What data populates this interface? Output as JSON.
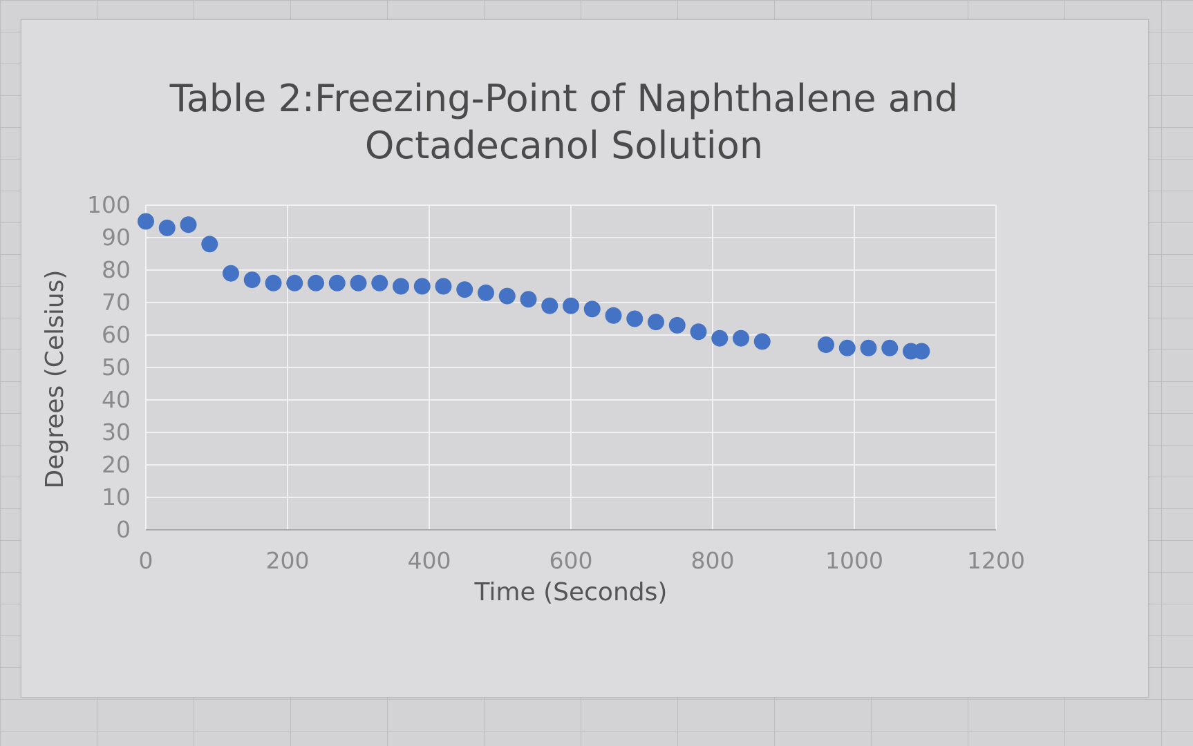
{
  "chart_data": {
    "type": "scatter",
    "title_lines": [
      "Table 2:Freezing-Point of Naphthalene and",
      "Octadecanol Solution"
    ],
    "xlabel": "Time (Seconds)",
    "ylabel": "Degrees (Celsius)",
    "xlim": [
      0,
      1200
    ],
    "ylim": [
      0,
      100
    ],
    "x_ticks": [
      0,
      200,
      400,
      600,
      800,
      1000,
      1200
    ],
    "y_ticks": [
      0,
      10,
      20,
      30,
      40,
      50,
      60,
      70,
      80,
      90,
      100
    ],
    "grid": true,
    "marker_color": "#4472c4",
    "x": [
      0,
      30,
      60,
      90,
      120,
      150,
      180,
      210,
      240,
      270,
      300,
      330,
      360,
      390,
      420,
      450,
      480,
      510,
      540,
      570,
      600,
      630,
      660,
      690,
      720,
      750,
      780,
      810,
      840,
      870,
      960,
      990,
      1020,
      1050,
      1080,
      1095
    ],
    "y": [
      95,
      93,
      94,
      88,
      79,
      77,
      76,
      76,
      76,
      76,
      76,
      76,
      75,
      75,
      75,
      74,
      73,
      72,
      71,
      69,
      69,
      68,
      66,
      65,
      64,
      63,
      61,
      59,
      59,
      58,
      57,
      56,
      56,
      56,
      55,
      55
    ]
  }
}
